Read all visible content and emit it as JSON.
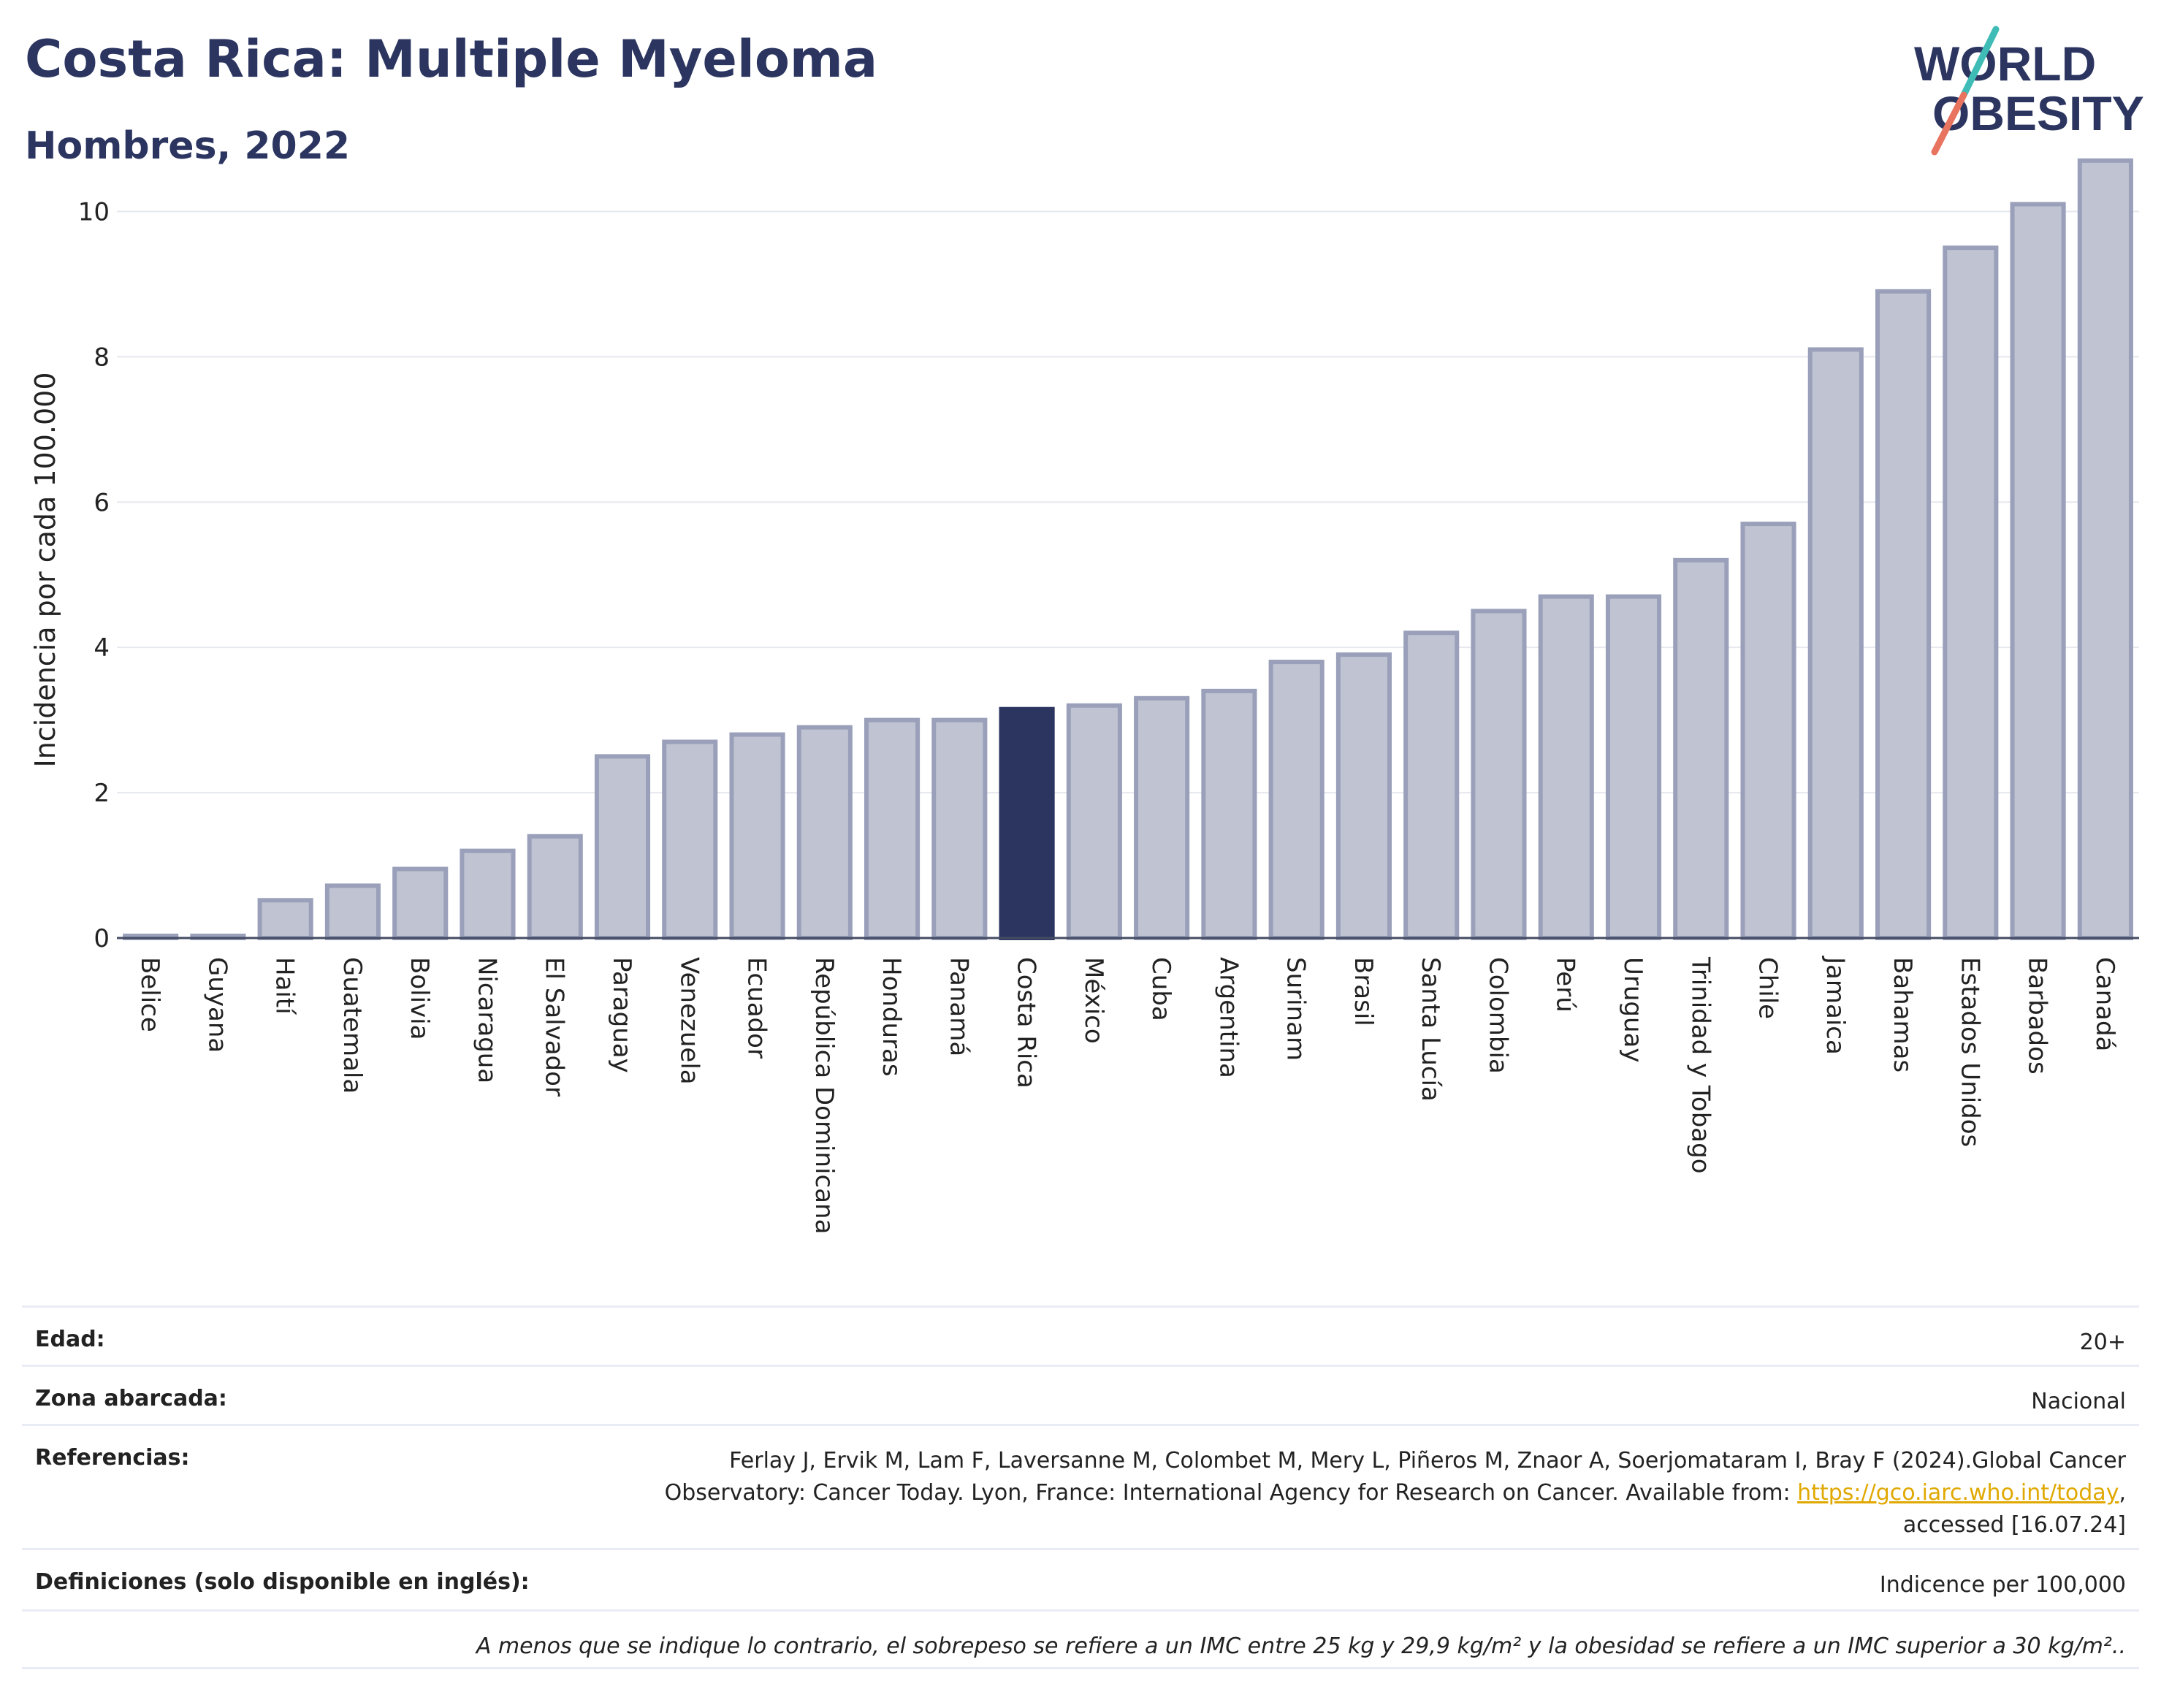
{
  "header": {
    "title": "Costa Rica: Multiple Myeloma",
    "subtitle": "Hombres, 2022"
  },
  "logo": {
    "line1": "WORLD",
    "line2": "OBESITY"
  },
  "chart_data": {
    "type": "bar",
    "title": "Costa Rica: Multiple Myeloma",
    "subtitle": "Hombres, 2022",
    "xlabel": "",
    "ylabel": "Incidencia por cada 100.000",
    "ylim": [
      0,
      11
    ],
    "yticks": [
      0,
      2,
      4,
      6,
      8,
      10
    ],
    "grid": true,
    "highlight": "Costa Rica",
    "colors": {
      "bar": "#c0c3d1",
      "bar_edge": "#9aa0ba",
      "highlight": "#2b3560"
    },
    "categories": [
      "Belice",
      "Guyana",
      "Haití",
      "Guatemala",
      "Bolivia",
      "Nicaragua",
      "El Salvador",
      "Paraguay",
      "Venezuela",
      "Ecuador",
      "República Dominicana",
      "Honduras",
      "Panamá",
      "Costa Rica",
      "México",
      "Cuba",
      "Argentina",
      "Surinam",
      "Brasil",
      "Santa Lucía",
      "Colombia",
      "Perú",
      "Uruguay",
      "Trinidad y Tobago",
      "Chile",
      "Jamaica",
      "Bahamas",
      "Estados Unidos",
      "Barbados",
      "Canadá"
    ],
    "values": [
      0.03,
      0.03,
      0.52,
      0.72,
      0.95,
      1.2,
      1.4,
      2.5,
      2.7,
      2.8,
      2.9,
      3.0,
      3.0,
      3.15,
      3.2,
      3.3,
      3.4,
      3.8,
      3.9,
      4.2,
      4.5,
      4.7,
      4.7,
      5.2,
      5.7,
      8.1,
      8.9,
      9.5,
      10.1,
      10.7
    ]
  },
  "info": {
    "edad_label": "Edad:",
    "edad_value": "20+",
    "zona_label": "Zona abarcada:",
    "zona_value": "Nacional",
    "ref_label": "Referencias:",
    "ref_line1": "Ferlay J, Ervik M, Lam F, Laversanne M, Colombet M, Mery L, Piñeros M, Znaor A, Soerjomataram I, Bray F (2024).Global Cancer",
    "ref_line2_pre": "Observatory: Cancer Today. Lyon, France: International Agency for Research on Cancer. Available from: ",
    "ref_link": "https://gco.iarc.who.int/today",
    "ref_line2_post": ",",
    "ref_line3": "accessed [16.07.24]",
    "def_label": "Definiciones (solo disponible en inglés):",
    "def_value": "Indicence per 100,000",
    "note": "A menos que se indique lo contrario, el sobrepeso se refiere a un IMC entre 25 kg y 29,9 kg/m² y la obesidad se refiere a un IMC superior a 30 kg/m².."
  }
}
